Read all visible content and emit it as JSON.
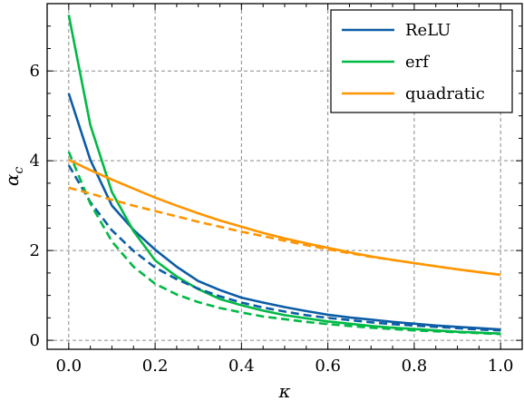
{
  "chart_data": {
    "type": "line",
    "title": "",
    "xlabel": "κ",
    "ylabel": "α",
    "ylabel_sub": "c",
    "xlim": [
      -0.05,
      1.05
    ],
    "ylim": [
      -0.2,
      7.5
    ],
    "xticks": [
      0.0,
      0.2,
      0.4,
      0.6,
      0.8,
      1.0
    ],
    "xtick_labels": [
      "0.0",
      "0.2",
      "0.4",
      "0.6",
      "0.8",
      "1.0"
    ],
    "yticks": [
      0,
      2,
      4,
      6
    ],
    "ytick_labels": [
      "0",
      "2",
      "4",
      "6"
    ],
    "grid": true,
    "legend_position": "top-right",
    "x": [
      0.0,
      0.05,
      0.1,
      0.15,
      0.2,
      0.25,
      0.3,
      0.35,
      0.4,
      0.45,
      0.5,
      0.55,
      0.6,
      0.65,
      0.7,
      0.75,
      0.8,
      0.85,
      0.9,
      0.95,
      1.0
    ],
    "series": [
      {
        "name": "ReLU",
        "style": "solid",
        "color": "#0c5da5",
        "values": [
          5.5,
          4.02,
          3.0,
          2.46,
          2.02,
          1.64,
          1.32,
          1.12,
          0.95,
          0.84,
          0.74,
          0.65,
          0.57,
          0.51,
          0.46,
          0.41,
          0.37,
          0.33,
          0.3,
          0.27,
          0.24
        ]
      },
      {
        "name": "erf",
        "style": "solid",
        "color": "#00b945",
        "values": [
          7.25,
          4.8,
          3.3,
          2.43,
          1.78,
          1.42,
          1.14,
          0.92,
          0.78,
          0.66,
          0.56,
          0.49,
          0.42,
          0.37,
          0.32,
          0.28,
          0.25,
          0.22,
          0.19,
          0.17,
          0.15
        ]
      },
      {
        "name": "quadratic",
        "style": "solid",
        "color": "#ff9500",
        "values": [
          4.02,
          3.79,
          3.58,
          3.38,
          3.18,
          3.0,
          2.83,
          2.67,
          2.53,
          2.39,
          2.27,
          2.16,
          2.06,
          1.96,
          1.87,
          1.79,
          1.72,
          1.65,
          1.58,
          1.52,
          1.46
        ]
      },
      {
        "style": "dashed",
        "color": "#0c5da5",
        "values": [
          3.9,
          3.08,
          2.45,
          1.99,
          1.62,
          1.36,
          1.15,
          0.98,
          0.84,
          0.73,
          0.64,
          0.56,
          0.5,
          0.45,
          0.4,
          0.36,
          0.33,
          0.3,
          0.27,
          0.24,
          0.22
        ]
      },
      {
        "style": "dashed",
        "color": "#00b945",
        "values": [
          4.2,
          3.05,
          2.2,
          1.64,
          1.26,
          1.02,
          0.85,
          0.72,
          0.62,
          0.53,
          0.47,
          0.41,
          0.36,
          0.32,
          0.28,
          0.25,
          0.22,
          0.2,
          0.18,
          0.16,
          0.14
        ]
      },
      {
        "style": "dashed",
        "color": "#ff9500",
        "values": [
          3.4,
          3.27,
          3.13,
          3.0,
          2.88,
          2.76,
          2.64,
          2.53,
          2.42,
          2.32,
          2.22,
          2.12,
          2.03,
          1.94,
          1.86,
          1.79,
          1.72,
          1.65,
          1.58,
          1.52,
          1.46
        ]
      }
    ]
  }
}
